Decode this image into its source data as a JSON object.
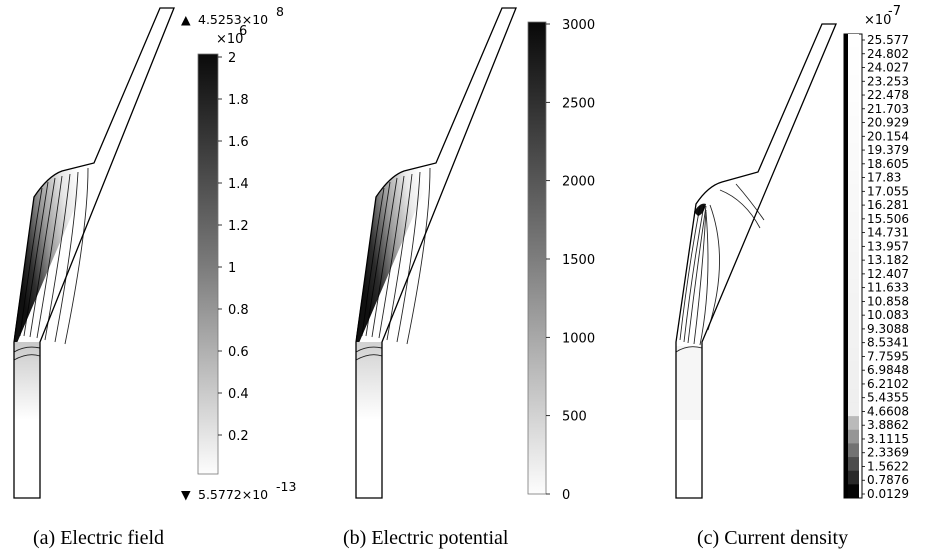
{
  "panels": [
    {
      "caption": "(a) Electric field",
      "colorbar": {
        "exponent": "×10",
        "exponent_power": "6",
        "ticks": [
          "2",
          "1.8",
          "1.6",
          "1.4",
          "1.2",
          "1",
          "0.8",
          "0.6",
          "0.4",
          "0.2"
        ]
      },
      "max_marker": {
        "symbol": "▲",
        "mantissa": "4.5253×10",
        "power": "8"
      },
      "min_marker": {
        "symbol": "▼",
        "mantissa": "5.5772×10",
        "power": "-13"
      }
    },
    {
      "caption": "(b) Electric potential",
      "colorbar": {
        "ticks": [
          "3000",
          "2500",
          "2000",
          "1500",
          "1000",
          "500",
          "0"
        ]
      }
    },
    {
      "caption": "(c) Current density",
      "colorbar": {
        "exponent": "×10",
        "exponent_power": "-7",
        "ticks": [
          "25.577",
          "24.802",
          "24.027",
          "23.253",
          "22.478",
          "21.703",
          "20.929",
          "20.154",
          "19.379",
          "18.605",
          "17.83",
          "17.055",
          "16.281",
          "15.506",
          "14.731",
          "13.957",
          "13.182",
          "12.407",
          "11.633",
          "10.858",
          "10.083",
          "9.3088",
          "8.5341",
          "7.7595",
          "6.9848",
          "6.2102",
          "5.4355",
          "4.6608",
          "3.8862",
          "3.1115",
          "2.3369",
          "1.5622",
          "0.7876",
          "0.0129"
        ]
      }
    }
  ]
}
